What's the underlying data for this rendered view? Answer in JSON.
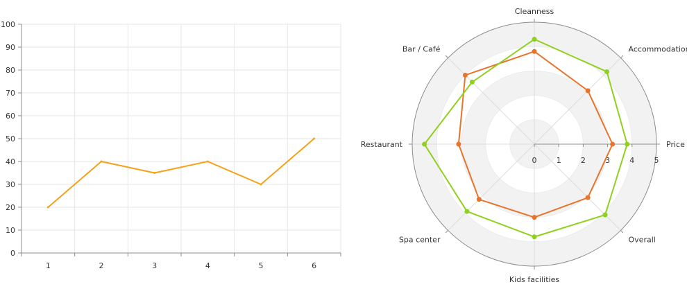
{
  "chart_data": [
    {
      "type": "line",
      "x": [
        1,
        2,
        3,
        4,
        5,
        6
      ],
      "series": [
        {
          "values": [
            20,
            40,
            35,
            40,
            30,
            50
          ],
          "color": "#f6a118"
        }
      ],
      "ylim": [
        0,
        100
      ],
      "yticks": [
        0,
        10,
        20,
        30,
        40,
        50,
        60,
        70,
        80,
        90,
        100
      ],
      "xticks": [
        1,
        2,
        3,
        4,
        5,
        6
      ],
      "grid": true
    },
    {
      "type": "radar",
      "categories": [
        "Cleanness",
        "Accommodation",
        "Price",
        "Overall",
        "Kids facilities",
        "Spa center",
        "Restaurant",
        "Bar / Café"
      ],
      "rlim": [
        0,
        5
      ],
      "rticks": [
        0,
        1,
        2,
        3,
        4,
        5
      ],
      "series": [
        {
          "values": [
            3.8,
            3.1,
            3.2,
            3.1,
            3.0,
            3.2,
            3.1,
            4.0
          ],
          "color": "#e8732a"
        },
        {
          "values": [
            4.3,
            4.2,
            3.8,
            4.1,
            3.8,
            3.9,
            4.5,
            3.6
          ],
          "color": "#8fd01e"
        }
      ],
      "grid": true
    }
  ]
}
